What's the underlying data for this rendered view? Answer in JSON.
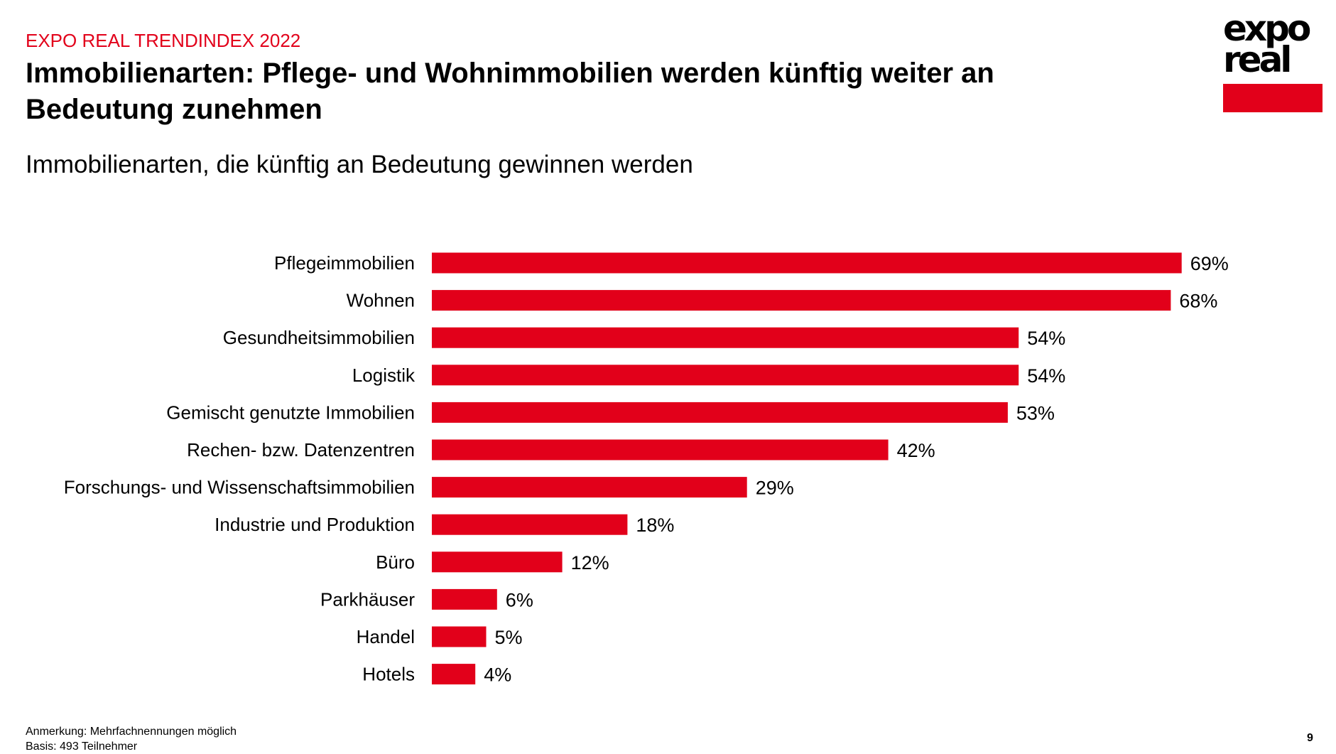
{
  "header": {
    "kicker": "EXPO REAL TRENDINDEX 2022",
    "title": "Immobilienarten: Pflege- und Wohnimmobilien werden künftig weiter an Bedeutung zunehmen"
  },
  "logo": {
    "line1": "expo",
    "line2": "real",
    "color": "#e2001a"
  },
  "chart_data": {
    "type": "bar",
    "orientation": "horizontal",
    "title": "Immobilienarten, die künftig an Bedeutung gewinnen werden",
    "categories": [
      "Pflegeimmobilien",
      "Wohnen",
      "Gesundheitsimmobilien",
      "Logistik",
      "Gemischt genutzte Immobilien",
      "Rechen- bzw. Datenzentren",
      "Forschungs- und Wissenschaftsimmobilien",
      "Industrie und Produktion",
      "Büro",
      "Parkhäuser",
      "Handel",
      "Hotels"
    ],
    "values": [
      69,
      68,
      54,
      54,
      53,
      42,
      29,
      18,
      12,
      6,
      5,
      4
    ],
    "value_labels": [
      "69%",
      "68%",
      "54%",
      "54%",
      "53%",
      "42%",
      "29%",
      "18%",
      "12%",
      "6%",
      "5%",
      "4%"
    ],
    "unit": "%",
    "xlim": [
      0,
      100
    ],
    "grid": false,
    "bar_color": "#e2001a"
  },
  "footer": {
    "note": "Anmerkung: Mehrfachnennungen möglich",
    "base": "Basis: 493 Teilnehmer",
    "page": "9"
  }
}
